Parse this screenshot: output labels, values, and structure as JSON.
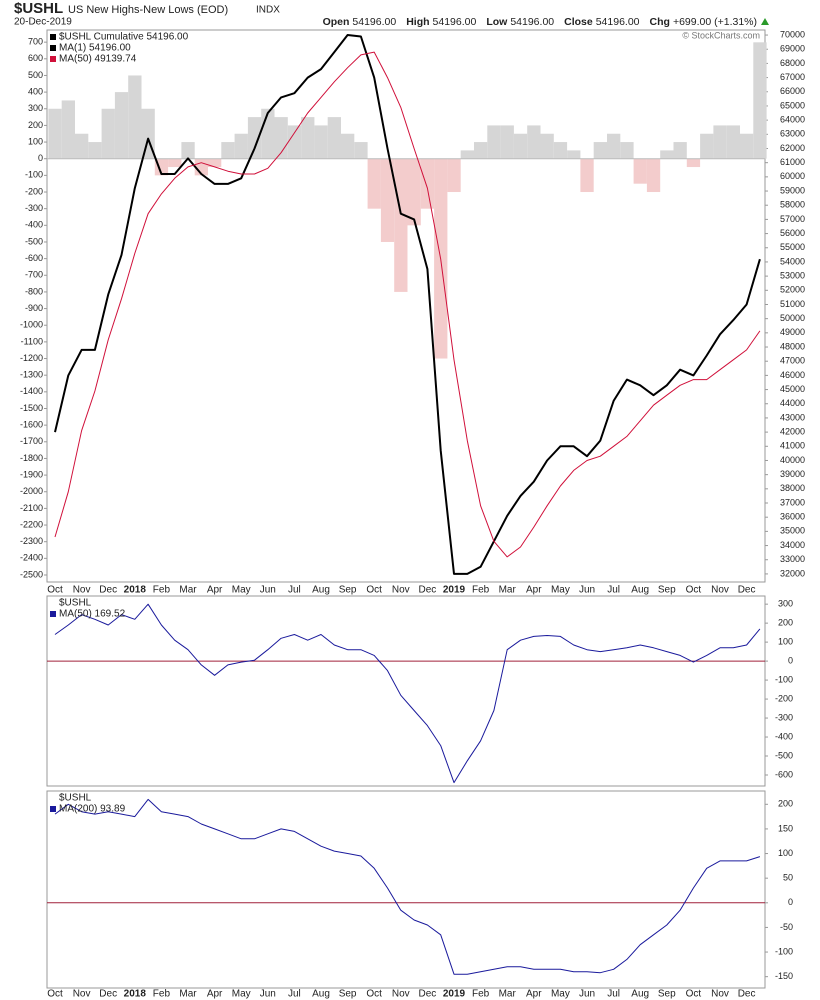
{
  "header": {
    "symbol": "$USHL",
    "name": "US New Highs-New Lows (EOD)",
    "exchange": "INDX",
    "date": "20-Dec-2019",
    "quote": [
      {
        "label": "Open",
        "value": "54196.00"
      },
      {
        "label": "High",
        "value": "54196.00"
      },
      {
        "label": "Low",
        "value": "54196.00"
      },
      {
        "label": "Close",
        "value": "54196.00"
      },
      {
        "label": "Chg",
        "value": "+699.00 (+1.31%)"
      }
    ],
    "source": "© StockCharts.com"
  },
  "chart_data": [
    {
      "type": "line",
      "categories": [
        "Oct",
        null,
        "Nov",
        null,
        "Dec",
        null,
        "2018",
        null,
        "Feb",
        null,
        "Mar",
        null,
        "Apr",
        null,
        "May",
        null,
        "Jun",
        null,
        "Jul",
        null,
        "Aug",
        null,
        "Sep",
        null,
        "Oct",
        null,
        "Nov",
        null,
        "Dec",
        null,
        "2019",
        null,
        "Feb",
        null,
        "Mar",
        null,
        "Apr",
        null,
        "May",
        null,
        "Jun",
        null,
        "Jul",
        null,
        "Aug",
        null,
        "Sep",
        null,
        "Oct",
        null,
        "Nov",
        null,
        "Dec",
        null
      ],
      "histogram": {
        "pos_color": "#d6d6d6",
        "neg_color": "#f3cccc",
        "values": [
          300,
          350,
          150,
          100,
          300,
          400,
          500,
          300,
          -100,
          -50,
          100,
          -100,
          -50,
          100,
          150,
          250,
          300,
          250,
          200,
          250,
          200,
          250,
          150,
          100,
          -300,
          -500,
          -800,
          -400,
          -300,
          -1200,
          -200,
          50,
          100,
          200,
          200,
          150,
          200,
          150,
          100,
          50,
          -200,
          100,
          150,
          100,
          -150,
          -200,
          50,
          100,
          -50,
          150,
          200,
          200,
          150,
          699
        ]
      },
      "series": [
        {
          "name": "$USHL Cumulative 54196.00",
          "color": "#000000",
          "axis": "y2",
          "width": 2,
          "values": [
            42000,
            46000,
            47800,
            47800,
            51700,
            54500,
            59200,
            62700,
            60200,
            60200,
            61300,
            60200,
            59500,
            59500,
            59900,
            62000,
            64500,
            65600,
            65900,
            67000,
            67600,
            68800,
            70000,
            69900,
            67000,
            62000,
            57400,
            57000,
            53500,
            40700,
            32000,
            32000,
            32500,
            34300,
            36100,
            37500,
            38500,
            40000,
            41000,
            41000,
            40300,
            41400,
            44200,
            45700,
            45300,
            44600,
            45300,
            46400,
            46000,
            47400,
            48900,
            49900,
            51000,
            54196
          ]
        },
        {
          "name": "MA(50) 49139.74",
          "color": "#d0103a",
          "axis": "y2",
          "width": 1,
          "values": [
            34600,
            37800,
            42100,
            44900,
            48500,
            51400,
            54600,
            57400,
            58800,
            59900,
            60700,
            61000,
            60700,
            60400,
            60200,
            60200,
            60600,
            61700,
            63100,
            64500,
            65600,
            66700,
            67700,
            68600,
            68800,
            67000,
            64900,
            62000,
            59200,
            54200,
            47100,
            41400,
            36800,
            34300,
            33200,
            33900,
            35300,
            36800,
            38200,
            39300,
            40000,
            40300,
            41000,
            41700,
            42800,
            43900,
            44600,
            45300,
            45700,
            45700,
            46400,
            47100,
            47800,
            49139.74
          ]
        }
      ],
      "legend_extra": [
        {
          "name": "MA(1) 54196.00",
          "color": "#000000"
        }
      ],
      "ylim": [
        -2542,
        773
      ],
      "yticks": [
        700,
        600,
        500,
        400,
        300,
        200,
        100,
        0,
        -100,
        -200,
        -300,
        -400,
        -500,
        -600,
        -700,
        -800,
        -900,
        -1000,
        -1100,
        -1200,
        -1300,
        -1400,
        -1500,
        -1600,
        -1700,
        -1800,
        -1900,
        -2000,
        -2100,
        -2200,
        -2300,
        -2400,
        -2500
      ],
      "y2lim": [
        31430,
        70356
      ],
      "y2ticks": [
        70000,
        69000,
        68000,
        67000,
        66000,
        65000,
        64000,
        63000,
        62000,
        61000,
        60000,
        59000,
        58000,
        57000,
        56000,
        55000,
        54000,
        53000,
        52000,
        51000,
        50000,
        49000,
        48000,
        47000,
        46000,
        45000,
        44000,
        43000,
        42000,
        41000,
        40000,
        39000,
        38000,
        37000,
        36000,
        35000,
        34000,
        33000,
        32000
      ],
      "grid": false
    },
    {
      "type": "line",
      "legend_title": "$USHL",
      "series": [
        {
          "name": "MA(50) 169.52",
          "color": "#1a1a9c",
          "width": 1,
          "values": [
            140,
            190,
            245,
            220,
            190,
            245,
            220,
            300,
            190,
            110,
            60,
            -20,
            -75,
            -20,
            -5,
            5,
            60,
            120,
            140,
            110,
            140,
            85,
            60,
            60,
            30,
            -50,
            -180,
            -260,
            -340,
            -445,
            -640,
            -525,
            -420,
            -260,
            60,
            110,
            130,
            135,
            130,
            85,
            60,
            50,
            60,
            70,
            85,
            70,
            50,
            30,
            -5,
            30,
            70,
            70,
            85,
            169.52
          ]
        }
      ],
      "reference_line": {
        "value": 0,
        "color": "#a0203a"
      },
      "ylim": [
        -658,
        343
      ],
      "yticks": [
        300,
        200,
        100,
        0,
        -100,
        -200,
        -300,
        -400,
        -500,
        -600
      ],
      "grid": false
    },
    {
      "type": "line",
      "legend_title": "$USHL",
      "series": [
        {
          "name": "MA(200) 93.89",
          "color": "#1a1a9c",
          "width": 1,
          "values": [
            180,
            200,
            185,
            180,
            185,
            180,
            175,
            210,
            185,
            180,
            175,
            160,
            150,
            140,
            130,
            130,
            140,
            150,
            145,
            130,
            115,
            105,
            100,
            95,
            70,
            30,
            -15,
            -35,
            -45,
            -65,
            -145,
            -145,
            -140,
            -135,
            -130,
            -130,
            -135,
            -135,
            -135,
            -140,
            -140,
            -142,
            -135,
            -115,
            -85,
            -65,
            -45,
            -15,
            30,
            70,
            85,
            85,
            85,
            93.89
          ]
        }
      ],
      "reference_line": {
        "value": 0,
        "color": "#a0203a"
      },
      "ylim": [
        -173,
        227
      ],
      "yticks": [
        200,
        150,
        100,
        50,
        0,
        -50,
        -100,
        -150
      ],
      "grid": false
    }
  ]
}
